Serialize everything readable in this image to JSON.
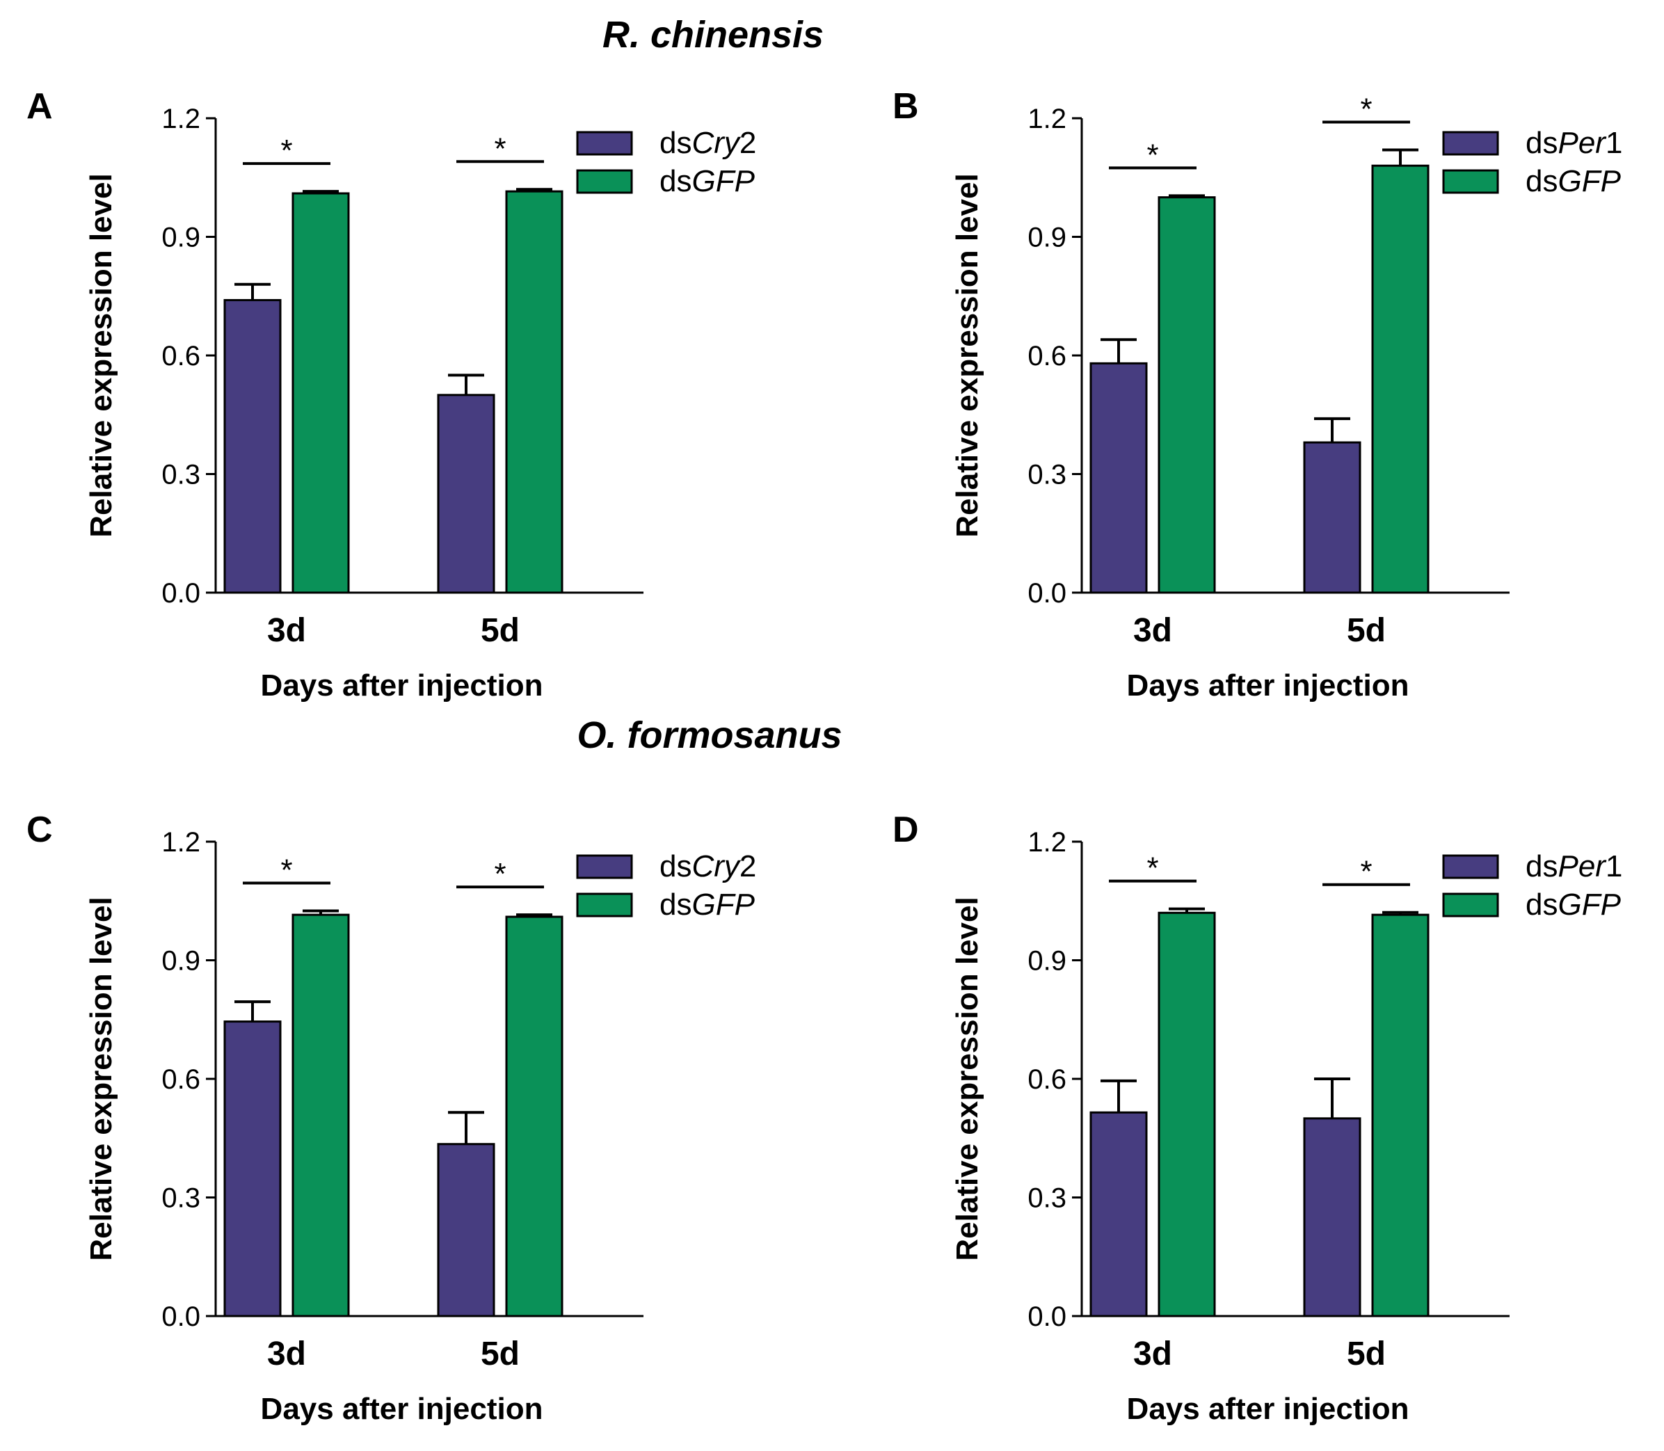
{
  "sections": [
    {
      "title": "R. chinensis"
    },
    {
      "title": "O. formosanus"
    }
  ],
  "colors": {
    "treatment": "#473d80",
    "control": "#0a9158",
    "axis": "#000000"
  },
  "chart_data": [
    {
      "panel": "A",
      "type": "bar",
      "section": "R. chinensis",
      "categories": [
        "3d",
        "5d"
      ],
      "xlabel": "Days after injection",
      "ylabel": "Relative expression level",
      "ylim": [
        0,
        1.2
      ],
      "yticks": [
        "0.0",
        "0.3",
        "0.6",
        "0.9",
        "1.2"
      ],
      "legend_position": "top-right",
      "series": [
        {
          "name": "dsCry2",
          "legend_prefix": "ds",
          "legend_gene": "Cry",
          "legend_suffix": "2",
          "color_key": "treatment",
          "values": [
            0.74,
            0.5
          ],
          "errors": [
            0.04,
            0.05
          ]
        },
        {
          "name": "dsGFP",
          "legend_prefix": "ds",
          "legend_gene": "GFP",
          "legend_suffix": "",
          "color_key": "control",
          "values": [
            1.01,
            1.015
          ],
          "errors": [
            0.005,
            0.005
          ]
        }
      ],
      "significance": [
        "*",
        "*"
      ]
    },
    {
      "panel": "B",
      "type": "bar",
      "section": "R. chinensis",
      "categories": [
        "3d",
        "5d"
      ],
      "xlabel": "Days after injection",
      "ylabel": "Relative expression level",
      "ylim": [
        0,
        1.2
      ],
      "yticks": [
        "0.0",
        "0.3",
        "0.6",
        "0.9",
        "1.2"
      ],
      "legend_position": "top-right",
      "series": [
        {
          "name": "dsPer1",
          "legend_prefix": "ds",
          "legend_gene": "Per",
          "legend_suffix": "1",
          "color_key": "treatment",
          "values": [
            0.58,
            0.38
          ],
          "errors": [
            0.06,
            0.06
          ]
        },
        {
          "name": "dsGFP",
          "legend_prefix": "ds",
          "legend_gene": "GFP",
          "legend_suffix": "",
          "color_key": "control",
          "values": [
            1.0,
            1.08
          ],
          "errors": [
            0.004,
            0.04
          ]
        }
      ],
      "significance": [
        "*",
        "*"
      ]
    },
    {
      "panel": "C",
      "type": "bar",
      "section": "O. formosanus",
      "categories": [
        "3d",
        "5d"
      ],
      "xlabel": "Days after injection",
      "ylabel": "Relative expression level",
      "ylim": [
        0,
        1.2
      ],
      "yticks": [
        "0.0",
        "0.3",
        "0.6",
        "0.9",
        "1.2"
      ],
      "legend_position": "top-right",
      "series": [
        {
          "name": "dsCry2",
          "legend_prefix": "ds",
          "legend_gene": "Cry",
          "legend_suffix": "2",
          "color_key": "treatment",
          "values": [
            0.745,
            0.435
          ],
          "errors": [
            0.05,
            0.08
          ]
        },
        {
          "name": "dsGFP",
          "legend_prefix": "ds",
          "legend_gene": "GFP",
          "legend_suffix": "",
          "color_key": "control",
          "values": [
            1.015,
            1.01
          ],
          "errors": [
            0.01,
            0.005
          ]
        }
      ],
      "significance": [
        "*",
        "*"
      ]
    },
    {
      "panel": "D",
      "type": "bar",
      "section": "O. formosanus",
      "categories": [
        "3d",
        "5d"
      ],
      "xlabel": "Days after injection",
      "ylabel": "Relative expression level",
      "ylim": [
        0,
        1.2
      ],
      "yticks": [
        "0.0",
        "0.3",
        "0.6",
        "0.9",
        "1.2"
      ],
      "legend_position": "top-right",
      "series": [
        {
          "name": "dsPer1",
          "legend_prefix": "ds",
          "legend_gene": "Per",
          "legend_suffix": "1",
          "color_key": "treatment",
          "values": [
            0.515,
            0.5
          ],
          "errors": [
            0.08,
            0.1
          ]
        },
        {
          "name": "dsGFP",
          "legend_prefix": "ds",
          "legend_gene": "GFP",
          "legend_suffix": "",
          "color_key": "control",
          "values": [
            1.02,
            1.015
          ],
          "errors": [
            0.01,
            0.006
          ]
        }
      ],
      "significance": [
        "*",
        "*"
      ]
    }
  ]
}
